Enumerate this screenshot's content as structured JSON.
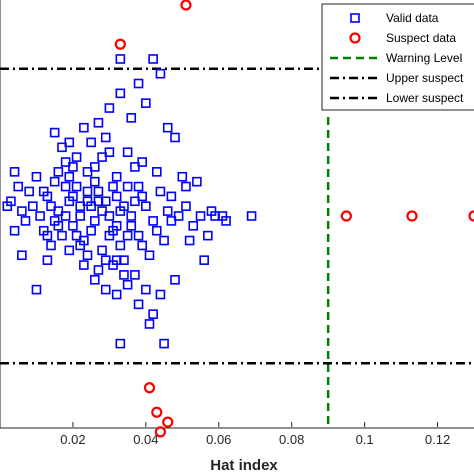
{
  "chart_data": {
    "type": "scatter",
    "xlabel": "Hat index",
    "ylabel": "",
    "xlim": [
      0.0,
      0.13
    ],
    "ylim": [
      -4.3,
      4.3
    ],
    "xticks": [
      "0.02",
      "0.04",
      "0.06",
      "0.08",
      "0.1",
      "0.12"
    ],
    "grid": false,
    "legend_position": "top-right",
    "colors": {
      "valid": "#0000ff",
      "suspect": "#ff0000",
      "warning": "#008000",
      "limits": "#000000"
    },
    "series": [
      {
        "name": "Valid data",
        "marker": "square",
        "points": [
          [
            0.004,
            0.9
          ],
          [
            0.005,
            0.6
          ],
          [
            0.003,
            0.3
          ],
          [
            0.006,
            0.1
          ],
          [
            0.008,
            0.5
          ],
          [
            0.009,
            0.2
          ],
          [
            0.007,
            -0.1
          ],
          [
            0.01,
            0.8
          ],
          [
            0.011,
            0.0
          ],
          [
            0.012,
            -0.3
          ],
          [
            0.013,
            0.4
          ],
          [
            0.014,
            -0.6
          ],
          [
            0.015,
            0.7
          ],
          [
            0.016,
            0.1
          ],
          [
            0.017,
            -0.4
          ],
          [
            0.018,
            1.1
          ],
          [
            0.019,
            0.3
          ],
          [
            0.02,
            -0.2
          ],
          [
            0.021,
            0.6
          ],
          [
            0.022,
            0.0
          ],
          [
            0.023,
            -0.5
          ],
          [
            0.024,
            0.9
          ],
          [
            0.025,
            0.2
          ],
          [
            0.026,
            -0.1
          ],
          [
            0.027,
            0.5
          ],
          [
            0.028,
            -0.7
          ],
          [
            0.029,
            0.3
          ],
          [
            0.03,
            1.3
          ],
          [
            0.031,
            -0.3
          ],
          [
            0.032,
            0.4
          ],
          [
            0.033,
            0.1
          ],
          [
            0.034,
            -0.9
          ],
          [
            0.035,
            0.6
          ],
          [
            0.036,
            0.0
          ],
          [
            0.037,
            1.0
          ],
          [
            0.038,
            -0.4
          ],
          [
            0.04,
            0.2
          ],
          [
            0.042,
            -0.1
          ],
          [
            0.044,
            0.5
          ],
          [
            0.046,
            0.1
          ],
          [
            0.012,
            0.5
          ],
          [
            0.014,
            0.2
          ],
          [
            0.016,
            -0.2
          ],
          [
            0.018,
            0.6
          ],
          [
            0.02,
            0.4
          ],
          [
            0.022,
            -0.6
          ],
          [
            0.024,
            0.3
          ],
          [
            0.026,
            0.7
          ],
          [
            0.028,
            0.1
          ],
          [
            0.03,
            -0.4
          ],
          [
            0.032,
            0.8
          ],
          [
            0.034,
            0.2
          ],
          [
            0.036,
            -0.2
          ],
          [
            0.038,
            0.6
          ],
          [
            0.016,
            0.9
          ],
          [
            0.02,
            1.0
          ],
          [
            0.024,
            -0.8
          ],
          [
            0.028,
            1.2
          ],
          [
            0.031,
            0.6
          ],
          [
            0.033,
            -0.6
          ],
          [
            0.013,
            -0.9
          ],
          [
            0.017,
            1.4
          ],
          [
            0.019,
            -0.7
          ],
          [
            0.021,
            1.2
          ],
          [
            0.023,
            -1.0
          ],
          [
            0.025,
            1.5
          ],
          [
            0.027,
            -1.1
          ],
          [
            0.029,
            1.6
          ],
          [
            0.031,
            -1.0
          ],
          [
            0.035,
            1.3
          ],
          [
            0.037,
            -1.2
          ],
          [
            0.039,
            1.1
          ],
          [
            0.041,
            -0.8
          ],
          [
            0.043,
            0.9
          ],
          [
            0.045,
            -0.5
          ],
          [
            0.047,
            0.4
          ],
          [
            0.049,
            0.0
          ],
          [
            0.051,
            0.6
          ],
          [
            0.053,
            -0.2
          ],
          [
            0.055,
            0.0
          ],
          [
            0.057,
            -0.4
          ],
          [
            0.059,
            0.0
          ],
          [
            0.061,
            0.0
          ],
          [
            0.062,
            -0.1
          ],
          [
            0.069,
            0.0
          ],
          [
            0.05,
            0.8
          ],
          [
            0.054,
            0.7
          ],
          [
            0.035,
            -1.4
          ],
          [
            0.038,
            -1.8
          ],
          [
            0.04,
            -1.5
          ],
          [
            0.042,
            -2.0
          ],
          [
            0.044,
            -1.6
          ],
          [
            0.048,
            -1.3
          ],
          [
            0.041,
            -2.2
          ],
          [
            0.045,
            -2.6
          ],
          [
            0.03,
            2.2
          ],
          [
            0.033,
            2.5
          ],
          [
            0.036,
            2.0
          ],
          [
            0.038,
            2.7
          ],
          [
            0.04,
            2.3
          ],
          [
            0.042,
            3.2
          ],
          [
            0.044,
            2.9
          ],
          [
            0.046,
            1.8
          ],
          [
            0.048,
            1.6
          ],
          [
            0.034,
            -1.2
          ],
          [
            0.026,
            -1.3
          ],
          [
            0.029,
            -1.5
          ],
          [
            0.032,
            -1.6
          ],
          [
            0.023,
            1.8
          ],
          [
            0.027,
            1.9
          ],
          [
            0.01,
            -1.5
          ],
          [
            0.006,
            -0.8
          ],
          [
            0.004,
            -0.3
          ],
          [
            0.002,
            0.2
          ],
          [
            0.015,
            1.7
          ],
          [
            0.019,
            1.5
          ],
          [
            0.013,
            -0.4
          ],
          [
            0.015,
            -0.1
          ],
          [
            0.022,
            0.2
          ],
          [
            0.025,
            -0.3
          ],
          [
            0.027,
            0.3
          ],
          [
            0.03,
            0.0
          ],
          [
            0.032,
            -0.2
          ],
          [
            0.018,
            0.0
          ],
          [
            0.021,
            -0.4
          ],
          [
            0.024,
            0.5
          ],
          [
            0.019,
            0.8
          ],
          [
            0.026,
            1.0
          ],
          [
            0.029,
            -0.9
          ],
          [
            0.033,
            -2.6
          ],
          [
            0.033,
            3.2
          ],
          [
            0.032,
            -0.9
          ],
          [
            0.035,
            -0.4
          ],
          [
            0.039,
            0.4
          ],
          [
            0.043,
            -0.3
          ],
          [
            0.047,
            -0.1
          ],
          [
            0.051,
            0.2
          ],
          [
            0.052,
            -0.5
          ],
          [
            0.056,
            -0.9
          ],
          [
            0.058,
            0.1
          ],
          [
            0.037,
            0.3
          ],
          [
            0.039,
            -0.6
          ]
        ]
      },
      {
        "name": "Suspect data",
        "marker": "circle",
        "points": [
          [
            0.051,
            4.3
          ],
          [
            0.033,
            3.5
          ],
          [
            0.041,
            -3.5
          ],
          [
            0.043,
            -4.0
          ],
          [
            0.046,
            -4.2
          ],
          [
            0.044,
            -4.4
          ],
          [
            0.095,
            0.0
          ],
          [
            0.113,
            0.0
          ],
          [
            0.13,
            0.0
          ]
        ]
      }
    ],
    "reference_lines": [
      {
        "name": "Warning Level",
        "orientation": "vertical",
        "value": 0.09,
        "style": "dashed"
      },
      {
        "name": "Upper suspect",
        "orientation": "horizontal",
        "value": 3.0,
        "style": "dashdot"
      },
      {
        "name": "Lower suspect",
        "orientation": "horizontal",
        "value": -3.0,
        "style": "dashdot"
      }
    ],
    "legend": [
      "Valid data",
      "Suspect data",
      "Warning Level",
      "Upper suspect",
      "Lower suspect"
    ]
  }
}
